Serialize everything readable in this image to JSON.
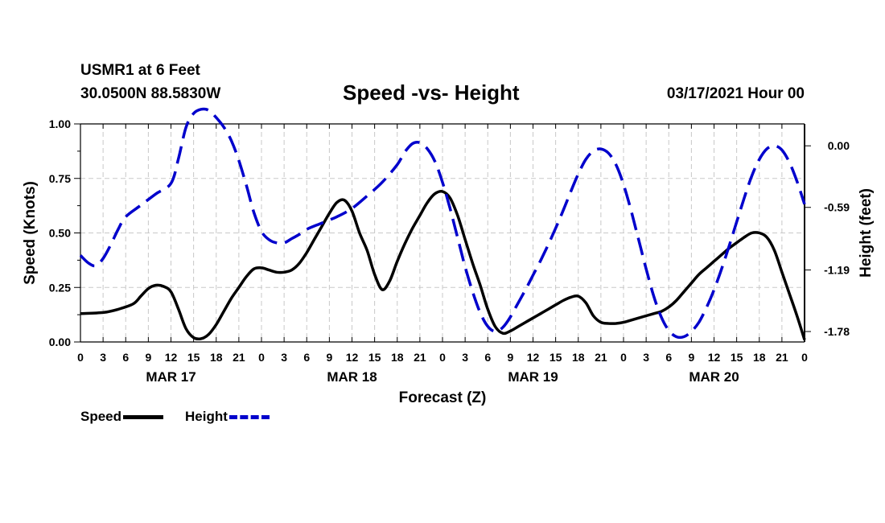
{
  "header": {
    "station": "USMR1 at 6 Feet",
    "coords": "30.0500N 88.5830W",
    "title": "Speed -vs- Height",
    "date": "03/17/2021 Hour 00"
  },
  "legend": {
    "speed_label": "Speed",
    "height_label": "Height"
  },
  "colors": {
    "speed": "#000000",
    "height": "#0000cc",
    "grid": "#c8c8c8"
  },
  "chart_data": {
    "type": "line",
    "title": "Speed -vs- Height",
    "xlabel": "Forecast (Z)",
    "ylabel": "Speed (Knots)",
    "ylabel_right": "Height (feet)",
    "x_range_hours": [
      0,
      96
    ],
    "xticks_hours": [
      0,
      3,
      6,
      9,
      12,
      15,
      18,
      21,
      24,
      27,
      30,
      33,
      36,
      39,
      42,
      45,
      48,
      51,
      54,
      57,
      60,
      63,
      66,
      69,
      72,
      75,
      78,
      81,
      84,
      87,
      90,
      93,
      96
    ],
    "xtick_labels": [
      "0",
      "3",
      "6",
      "9",
      "12",
      "15",
      "18",
      "21",
      "0",
      "3",
      "6",
      "9",
      "12",
      "15",
      "18",
      "21",
      "0",
      "3",
      "6",
      "9",
      "12",
      "15",
      "18",
      "21",
      "0",
      "3",
      "6",
      "9",
      "12",
      "15",
      "18",
      "21",
      "0"
    ],
    "day_labels": [
      {
        "label": "MAR 17",
        "hour": 12
      },
      {
        "label": "MAR 18",
        "hour": 36
      },
      {
        "label": "MAR 19",
        "hour": 60
      },
      {
        "label": "MAR 20",
        "hour": 84
      }
    ],
    "ylim": [
      0,
      1.0
    ],
    "yticks": [
      0,
      0.25,
      0.5,
      0.75,
      1.0
    ],
    "ytick_labels": [
      "0.00",
      "0.25",
      "0.50",
      "0.75",
      "1.00"
    ],
    "ylim_right": [
      -1.88,
      0.21
    ],
    "yticks_right": [
      -1.78,
      -1.19,
      -0.59,
      0.0
    ],
    "ytick_labels_right": [
      "-1.78",
      "-1.19",
      "-0.59",
      "0.00"
    ],
    "grid": true,
    "series": [
      {
        "name": "Speed",
        "axis": "left",
        "style": "solid",
        "x": [
          0,
          3,
          5,
          7,
          8,
          9,
          10,
          11,
          12,
          13,
          14,
          15,
          16,
          17,
          18,
          19,
          20,
          21,
          22,
          23,
          24,
          25,
          26,
          27,
          28,
          29,
          30,
          31,
          32,
          33,
          34,
          35,
          36,
          37,
          38,
          39,
          40,
          41,
          42,
          43,
          44,
          45,
          46,
          47,
          48,
          49,
          50,
          51,
          52,
          53,
          54,
          55,
          56,
          57,
          58,
          59,
          60,
          61,
          62,
          63,
          64,
          65,
          66,
          67,
          68,
          69,
          70,
          71,
          72,
          73,
          74,
          75,
          76,
          77,
          78,
          79,
          80,
          81,
          82,
          83,
          84,
          85,
          86,
          87,
          88,
          89,
          90,
          91,
          92,
          93,
          94,
          95,
          96
        ],
        "values": [
          0.13,
          0.135,
          0.15,
          0.175,
          0.21,
          0.245,
          0.26,
          0.255,
          0.23,
          0.15,
          0.06,
          0.02,
          0.015,
          0.035,
          0.08,
          0.14,
          0.2,
          0.25,
          0.3,
          0.335,
          0.34,
          0.33,
          0.32,
          0.32,
          0.33,
          0.36,
          0.41,
          0.47,
          0.53,
          0.59,
          0.64,
          0.65,
          0.6,
          0.5,
          0.42,
          0.31,
          0.24,
          0.28,
          0.37,
          0.45,
          0.52,
          0.58,
          0.64,
          0.68,
          0.69,
          0.66,
          0.58,
          0.47,
          0.36,
          0.26,
          0.15,
          0.07,
          0.04,
          0.05,
          0.07,
          0.09,
          0.11,
          0.13,
          0.15,
          0.17,
          0.19,
          0.205,
          0.21,
          0.18,
          0.12,
          0.09,
          0.085,
          0.085,
          0.09,
          0.1,
          0.11,
          0.12,
          0.13,
          0.14,
          0.16,
          0.19,
          0.23,
          0.27,
          0.31,
          0.34,
          0.37,
          0.4,
          0.43,
          0.455,
          0.48,
          0.5,
          0.5,
          0.48,
          0.42,
          0.32,
          0.22,
          0.12,
          0.01
        ]
      },
      {
        "name": "Height",
        "axis": "right",
        "style": "dashed",
        "x": [
          0,
          1,
          2,
          3,
          4,
          5,
          6,
          8,
          10,
          12,
          13,
          14,
          15,
          16,
          17,
          18,
          19,
          20,
          21,
          22,
          23,
          24,
          25,
          26,
          27,
          28,
          29,
          30,
          32,
          34,
          36,
          38,
          40,
          42,
          43,
          44,
          45,
          46,
          47,
          48,
          49,
          50,
          51,
          52,
          53,
          54,
          55,
          56,
          57,
          58,
          59,
          60,
          61,
          62,
          63,
          64,
          65,
          66,
          67,
          68,
          69,
          70,
          71,
          72,
          73,
          74,
          75,
          76,
          77,
          78,
          79,
          80,
          81,
          82,
          83,
          84,
          85,
          86,
          87,
          88,
          89,
          90,
          91,
          92,
          93,
          94,
          95,
          96
        ],
        "values": [
          -1.05,
          -1.12,
          -1.15,
          -1.08,
          -0.95,
          -0.8,
          -0.68,
          -0.57,
          -0.46,
          -0.36,
          -0.12,
          0.18,
          0.31,
          0.35,
          0.34,
          0.27,
          0.18,
          0.05,
          -0.14,
          -0.38,
          -0.64,
          -0.82,
          -0.9,
          -0.93,
          -0.93,
          -0.89,
          -0.85,
          -0.8,
          -0.74,
          -0.68,
          -0.6,
          -0.48,
          -0.35,
          -0.18,
          -0.06,
          0.02,
          0.03,
          -0.03,
          -0.15,
          -0.35,
          -0.6,
          -0.88,
          -1.16,
          -1.4,
          -1.6,
          -1.73,
          -1.78,
          -1.74,
          -1.64,
          -1.51,
          -1.38,
          -1.24,
          -1.1,
          -0.95,
          -0.79,
          -0.62,
          -0.44,
          -0.27,
          -0.13,
          -0.05,
          -0.03,
          -0.07,
          -0.18,
          -0.37,
          -0.62,
          -0.9,
          -1.18,
          -1.44,
          -1.64,
          -1.77,
          -1.83,
          -1.83,
          -1.78,
          -1.69,
          -1.55,
          -1.38,
          -1.18,
          -0.96,
          -0.73,
          -0.5,
          -0.29,
          -0.13,
          -0.03,
          0.0,
          -0.04,
          -0.16,
          -0.34,
          -0.56
        ]
      }
    ]
  }
}
